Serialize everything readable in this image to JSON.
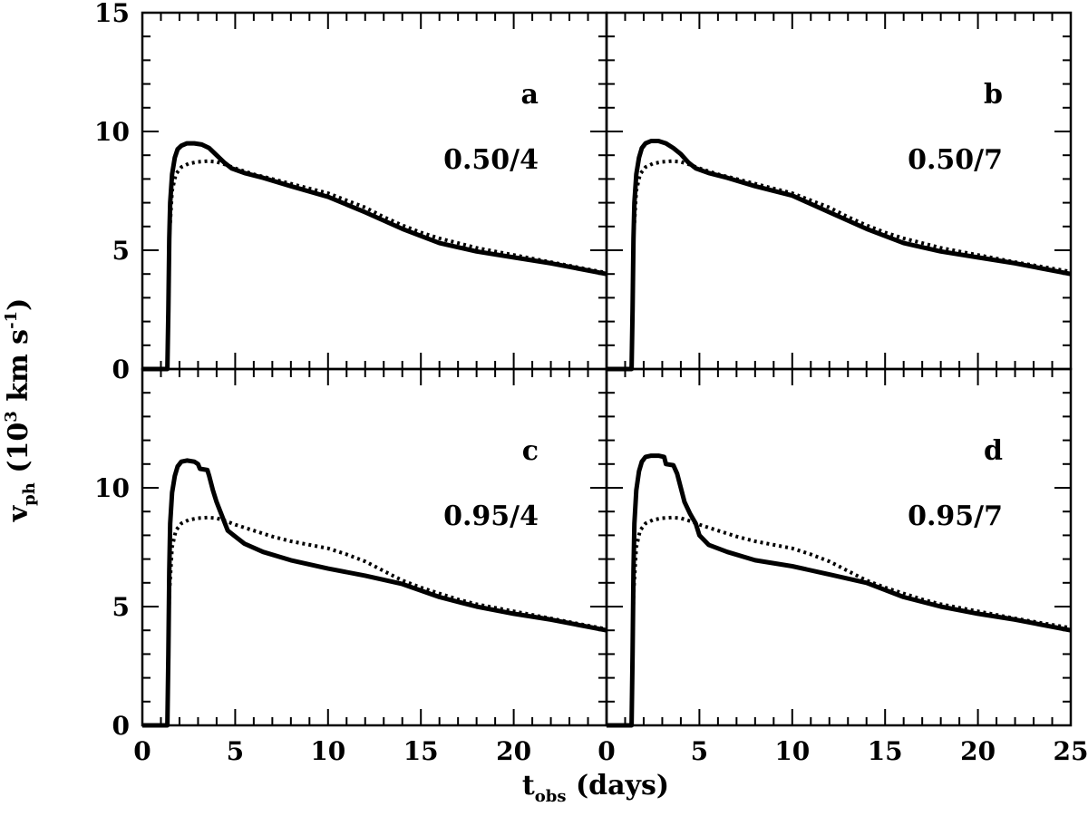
{
  "chart_data": {
    "type": "line",
    "layout": "2x2 panels sharing axes",
    "xlabel": {
      "main": "t",
      "sub": "obs",
      "rest": " (days)"
    },
    "ylabel": {
      "main": "v",
      "sub": "ph",
      "rest": " (10",
      "sup": "3",
      "rest2": " km s",
      "sup2": "-1",
      "rest3": ")"
    },
    "xlim": [
      0,
      25
    ],
    "ylim": [
      0,
      15
    ],
    "x_tick_labels_left": [
      "0",
      "5",
      "10",
      "15",
      "20"
    ],
    "x_tick_labels_right": [
      "0",
      "5",
      "10",
      "15",
      "20",
      "25"
    ],
    "y_tick_labels_top": [
      "0",
      "5",
      "10",
      "15"
    ],
    "y_tick_labels_bottom": [
      "0",
      "5",
      "10"
    ],
    "panels": [
      {
        "letter": "a",
        "param": "0.50/4",
        "series": [
          {
            "name": "solid",
            "style": "solid",
            "x": [
              0,
              1.35,
              1.4,
              1.45,
              1.5,
              1.6,
              1.75,
              1.9,
              2.1,
              2.4,
              2.8,
              3.2,
              3.6,
              4.0,
              4.4,
              4.8,
              5.5,
              6.5,
              8,
              10,
              12,
              14,
              16,
              18,
              20,
              22,
              25
            ],
            "y": [
              0,
              0,
              2.5,
              5.5,
              7.0,
              8.2,
              8.9,
              9.25,
              9.4,
              9.5,
              9.5,
              9.45,
              9.3,
              9.0,
              8.7,
              8.45,
              8.25,
              8.05,
              7.7,
              7.25,
              6.6,
              5.9,
              5.3,
              4.95,
              4.7,
              4.45,
              4.0
            ]
          },
          {
            "name": "dotted",
            "style": "dotted",
            "x": [
              1.35,
              1.45,
              1.6,
              1.8,
              2.1,
              2.5,
              3.0,
              3.5,
              4.0,
              4.5,
              5.0,
              6,
              7,
              8,
              9,
              10,
              11,
              12,
              13,
              14,
              15,
              16,
              17,
              18,
              20,
              22,
              25
            ],
            "y": [
              0,
              5.5,
              7.5,
              8.2,
              8.5,
              8.65,
              8.72,
              8.75,
              8.72,
              8.6,
              8.45,
              8.2,
              8.0,
              7.8,
              7.6,
              7.4,
              7.1,
              6.8,
              6.4,
              6.05,
              5.75,
              5.5,
              5.3,
              5.1,
              4.8,
              4.5,
              4.05
            ]
          }
        ]
      },
      {
        "letter": "b",
        "param": "0.50/7",
        "series": [
          {
            "name": "solid",
            "style": "solid",
            "x": [
              0,
              1.35,
              1.4,
              1.45,
              1.5,
              1.6,
              1.75,
              1.9,
              2.1,
              2.4,
              2.8,
              3.2,
              3.6,
              4.0,
              4.4,
              4.8,
              5.5,
              6.5,
              8,
              10,
              12,
              14,
              16,
              18,
              20,
              22,
              25
            ],
            "y": [
              0,
              0,
              2.5,
              5.5,
              7.0,
              8.2,
              8.9,
              9.3,
              9.5,
              9.6,
              9.6,
              9.5,
              9.3,
              9.05,
              8.7,
              8.45,
              8.25,
              8.05,
              7.7,
              7.3,
              6.6,
              5.9,
              5.3,
              4.95,
              4.7,
              4.45,
              4.0
            ]
          },
          {
            "name": "dotted",
            "style": "dotted",
            "x": [
              1.35,
              1.45,
              1.6,
              1.8,
              2.1,
              2.5,
              3.0,
              3.5,
              4.0,
              4.5,
              5.0,
              6,
              7,
              8,
              9,
              10,
              11,
              12,
              13,
              14,
              15,
              16,
              17,
              18,
              20,
              22,
              25
            ],
            "y": [
              0,
              5.5,
              7.5,
              8.2,
              8.5,
              8.65,
              8.72,
              8.75,
              8.72,
              8.6,
              8.45,
              8.2,
              8.0,
              7.8,
              7.6,
              7.4,
              7.1,
              6.8,
              6.4,
              6.05,
              5.75,
              5.5,
              5.3,
              5.1,
              4.8,
              4.5,
              4.1
            ]
          }
        ]
      },
      {
        "letter": "c",
        "param": "0.95/4",
        "series": [
          {
            "name": "solid",
            "style": "solid",
            "x": [
              0,
              1.35,
              1.4,
              1.45,
              1.5,
              1.6,
              1.75,
              1.9,
              2.1,
              2.4,
              2.8,
              3.0,
              3.1,
              3.5,
              3.6,
              3.8,
              4.0,
              4.2,
              4.4,
              4.6,
              5.0,
              5.5,
              6.5,
              8,
              10,
              12,
              14,
              16,
              18,
              20,
              22,
              25
            ],
            "y": [
              0,
              0,
              3.0,
              6.5,
              8.5,
              9.8,
              10.5,
              10.9,
              11.1,
              11.15,
              11.1,
              11.0,
              10.8,
              10.75,
              10.5,
              9.9,
              9.4,
              9.0,
              8.6,
              8.2,
              7.95,
              7.65,
              7.3,
              6.95,
              6.6,
              6.3,
              5.95,
              5.4,
              5.0,
              4.7,
              4.45,
              4.0
            ]
          },
          {
            "name": "dotted",
            "style": "dotted",
            "x": [
              1.35,
              1.45,
              1.6,
              1.8,
              2.1,
              2.5,
              3.0,
              3.5,
              4.0,
              4.5,
              5.0,
              6,
              7,
              8,
              9,
              10,
              11,
              12,
              13,
              14,
              15,
              16,
              17,
              18,
              20,
              22,
              25
            ],
            "y": [
              0,
              5.5,
              7.5,
              8.2,
              8.5,
              8.65,
              8.72,
              8.75,
              8.72,
              8.6,
              8.45,
              8.2,
              7.95,
              7.75,
              7.6,
              7.45,
              7.2,
              6.9,
              6.5,
              6.1,
              5.8,
              5.55,
              5.3,
              5.1,
              4.8,
              4.5,
              4.05
            ]
          }
        ]
      },
      {
        "letter": "d",
        "param": "0.95/7",
        "series": [
          {
            "name": "solid",
            "style": "solid",
            "x": [
              0,
              1.35,
              1.4,
              1.45,
              1.5,
              1.6,
              1.75,
              1.9,
              2.1,
              2.4,
              2.8,
              3.1,
              3.2,
              3.6,
              3.8,
              4.0,
              4.2,
              4.5,
              4.8,
              5.0,
              5.5,
              6.5,
              8,
              10,
              12,
              14,
              16,
              18,
              20,
              22,
              25
            ],
            "y": [
              0,
              0,
              3.0,
              6.5,
              8.5,
              9.9,
              10.7,
              11.1,
              11.3,
              11.35,
              11.35,
              11.3,
              11.0,
              10.95,
              10.6,
              10.0,
              9.4,
              8.9,
              8.5,
              8.0,
              7.6,
              7.3,
              6.95,
              6.7,
              6.35,
              6.0,
              5.4,
              5.0,
              4.7,
              4.45,
              4.0
            ]
          },
          {
            "name": "dotted",
            "style": "dotted",
            "x": [
              1.35,
              1.45,
              1.6,
              1.8,
              2.1,
              2.5,
              3.0,
              3.5,
              4.0,
              4.5,
              5.0,
              6,
              7,
              8,
              9,
              10,
              11,
              12,
              13,
              14,
              15,
              16,
              17,
              18,
              20,
              22,
              25
            ],
            "y": [
              0,
              5.5,
              7.5,
              8.2,
              8.5,
              8.65,
              8.72,
              8.75,
              8.72,
              8.6,
              8.45,
              8.2,
              7.95,
              7.75,
              7.6,
              7.45,
              7.2,
              6.9,
              6.5,
              6.1,
              5.8,
              5.55,
              5.3,
              5.1,
              4.8,
              4.5,
              4.1
            ]
          }
        ]
      }
    ]
  }
}
